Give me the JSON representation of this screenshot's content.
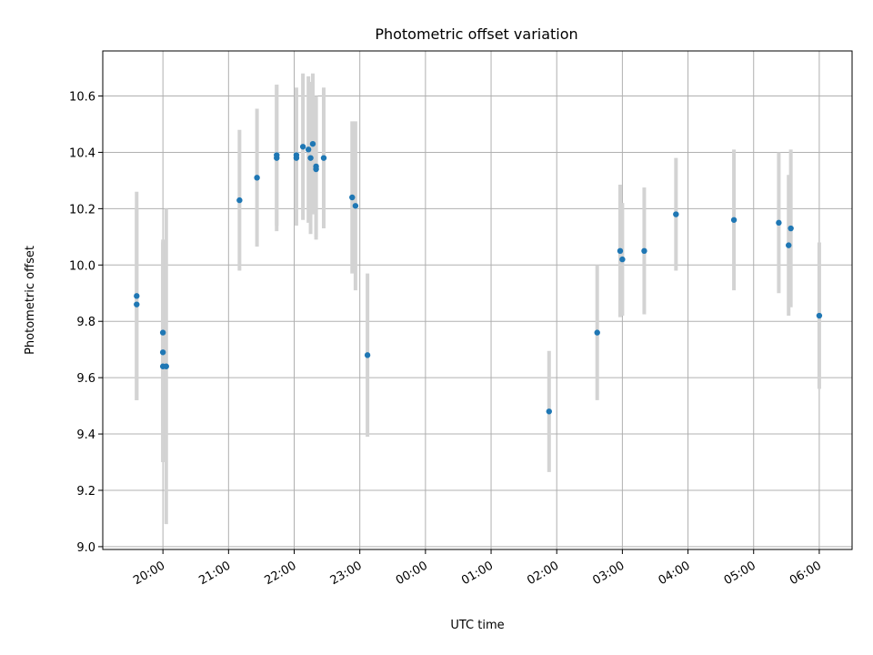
{
  "chart_data": {
    "type": "scatter",
    "title": "Photometric offset variation",
    "xlabel": "UTC time",
    "ylabel": "Photometric offset",
    "x_unit": "hours (19:00 → 06:00 spanning midnight)",
    "xlim": [
      "19:05",
      "06:30"
    ],
    "ylim": [
      8.99,
      10.76
    ],
    "xticks": [
      "20:00",
      "21:00",
      "22:00",
      "23:00",
      "00:00",
      "01:00",
      "02:00",
      "03:00",
      "04:00",
      "05:00",
      "06:00"
    ],
    "yticks": [
      "9.0",
      "9.2",
      "9.4",
      "9.6",
      "9.8",
      "10.0",
      "10.2",
      "10.4",
      "10.6"
    ],
    "grid": true,
    "marker_color": "#1f77b4",
    "errorbar_color": "#d3d3d3",
    "points": [
      {
        "t": "19:36",
        "y": 9.89,
        "err": 0.37
      },
      {
        "t": "19:36",
        "y": 9.86,
        "err": 0.34
      },
      {
        "t": "20:00",
        "y": 9.76,
        "err": 0.33
      },
      {
        "t": "20:00",
        "y": 9.69,
        "err": 0.39
      },
      {
        "t": "20:00",
        "y": 9.64,
        "err": 0.34
      },
      {
        "t": "20:03",
        "y": 9.64,
        "err": 0.56
      },
      {
        "t": "21:10",
        "y": 10.23,
        "err": 0.25
      },
      {
        "t": "21:26",
        "y": 10.31,
        "err": 0.245
      },
      {
        "t": "21:44",
        "y": 10.38,
        "err": 0.26
      },
      {
        "t": "21:44",
        "y": 10.39,
        "err": 0.25
      },
      {
        "t": "22:02",
        "y": 10.39,
        "err": 0.24
      },
      {
        "t": "22:02",
        "y": 10.38,
        "err": 0.24
      },
      {
        "t": "22:08",
        "y": 10.42,
        "err": 0.26
      },
      {
        "t": "22:13",
        "y": 10.41,
        "err": 0.26
      },
      {
        "t": "22:15",
        "y": 10.38,
        "err": 0.27
      },
      {
        "t": "22:17",
        "y": 10.43,
        "err": 0.25
      },
      {
        "t": "22:20",
        "y": 10.34,
        "err": 0.25
      },
      {
        "t": "22:20",
        "y": 10.35,
        "err": 0.25
      },
      {
        "t": "22:27",
        "y": 10.38,
        "err": 0.25
      },
      {
        "t": "22:53",
        "y": 10.24,
        "err": 0.27
      },
      {
        "t": "22:56",
        "y": 10.21,
        "err": 0.3
      },
      {
        "t": "23:07",
        "y": 9.68,
        "err": 0.29
      },
      {
        "t": "01:53",
        "y": 9.48,
        "err": 0.215
      },
      {
        "t": "02:37",
        "y": 9.76,
        "err": 0.24
      },
      {
        "t": "02:58",
        "y": 10.05,
        "err": 0.235
      },
      {
        "t": "03:00",
        "y": 10.02,
        "err": 0.2
      },
      {
        "t": "03:20",
        "y": 10.05,
        "err": 0.225
      },
      {
        "t": "03:49",
        "y": 10.18,
        "err": 0.2
      },
      {
        "t": "04:42",
        "y": 10.16,
        "err": 0.25
      },
      {
        "t": "05:23",
        "y": 10.15,
        "err": 0.25
      },
      {
        "t": "05:32",
        "y": 10.07,
        "err": 0.25
      },
      {
        "t": "05:34",
        "y": 10.13,
        "err": 0.28
      },
      {
        "t": "06:00",
        "y": 9.82,
        "err": 0.26
      }
    ]
  }
}
